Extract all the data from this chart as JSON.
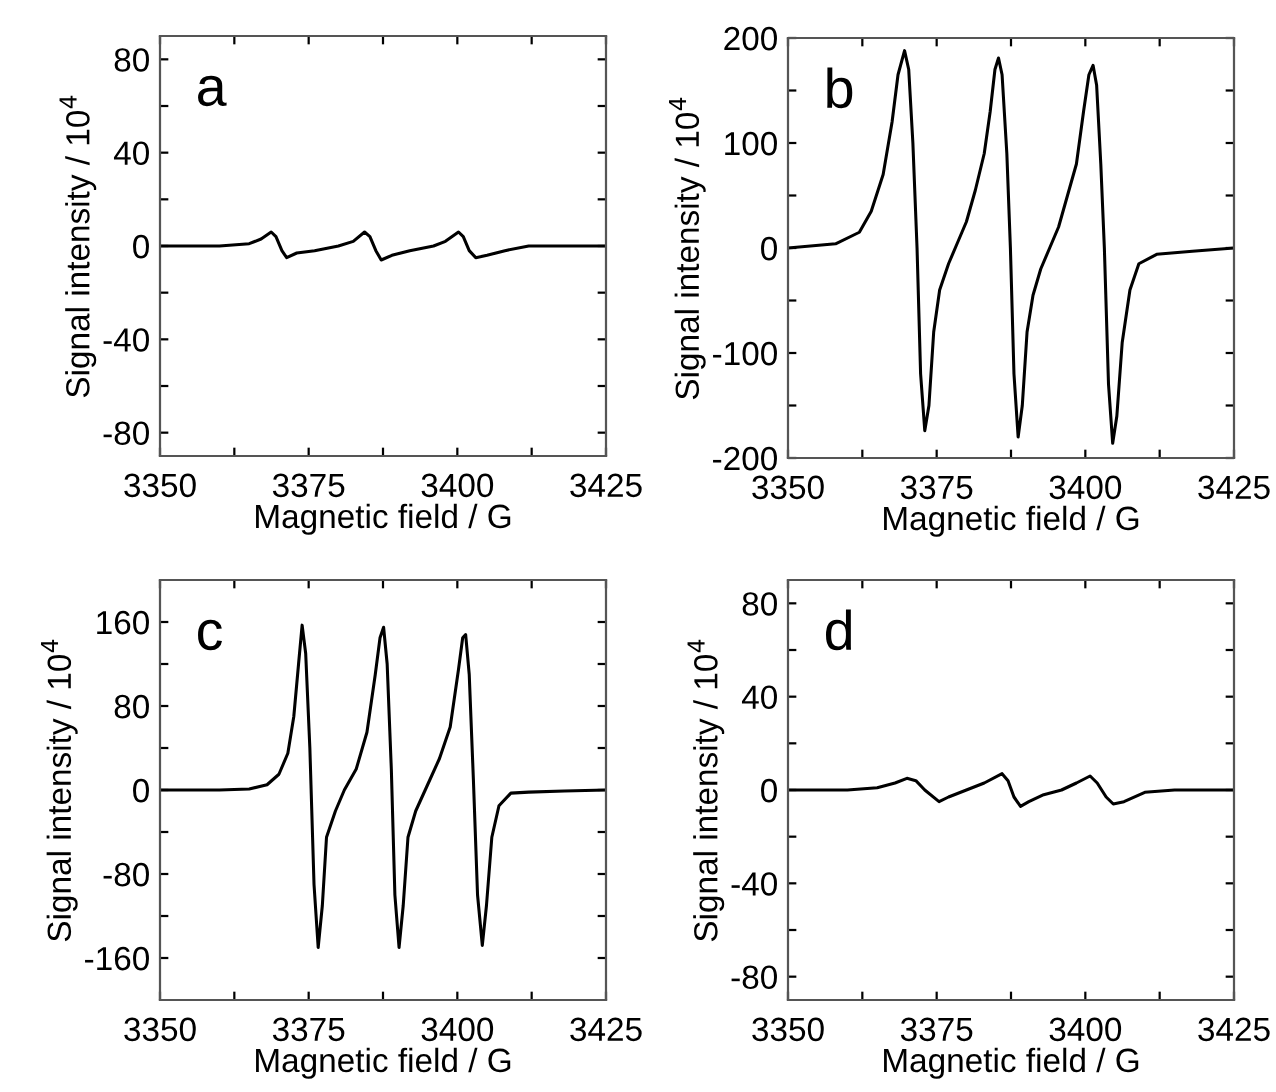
{
  "chart_data": [
    {
      "type": "line",
      "xlabel": "Magnetic field / G",
      "ylabel": "Signal intensity / 10$^{4}$",
      "annotations": [
        "a"
      ],
      "xlim": [
        3350,
        3425
      ],
      "ylim": [
        -90,
        90
      ],
      "xticks": [
        3350,
        {
          "value": 3362.5,
          "label": null
        },
        3375,
        {
          "value": 3387.5,
          "label": null
        },
        3400,
        {
          "value": 3412.5,
          "label": null
        },
        3425
      ],
      "yticks": [
        -80,
        {
          "value": -60,
          "label": null
        },
        -40,
        {
          "value": -20,
          "label": null
        },
        0,
        {
          "value": 20,
          "label": null
        },
        40,
        {
          "value": 60,
          "label": null
        },
        80
      ],
      "series": [
        {
          "color": "#000000",
          "x": [
            3350,
            3360,
            3365,
            3367,
            3368.7,
            3369.5,
            3370.5,
            3371.3,
            3373,
            3376,
            3380,
            3382.5,
            3384.4,
            3385.3,
            3386.3,
            3387.2,
            3389,
            3392,
            3396,
            3398,
            3400.2,
            3401,
            3402,
            3403.1,
            3405,
            3408,
            3412,
            3425
          ],
          "values": [
            0,
            0,
            1,
            3,
            6,
            4,
            -2,
            -5,
            -3,
            -2,
            0,
            2,
            6,
            4,
            -2,
            -6,
            -4,
            -2,
            0,
            2,
            6,
            4,
            -2,
            -5,
            -4,
            -2,
            0,
            0
          ]
        }
      ]
    },
    {
      "type": "line",
      "xlabel": "Magnetic field / G",
      "ylabel": "Signal intensity / 10$^{4}$",
      "annotations": [
        "b"
      ],
      "xlim": [
        3350,
        3425
      ],
      "ylim": [
        -200,
        200
      ],
      "xticks": [
        3350,
        {
          "value": 3362.5,
          "label": null
        },
        3375,
        {
          "value": 3387.5,
          "label": null
        },
        3400,
        {
          "value": 3412.5,
          "label": null
        },
        3425
      ],
      "yticks": [
        -200,
        {
          "value": -150,
          "label": null
        },
        -100,
        {
          "value": -50,
          "label": null
        },
        0,
        {
          "value": 50,
          "label": null
        },
        100,
        {
          "value": 150,
          "label": null
        },
        200
      ],
      "series": [
        {
          "color": "#000000",
          "x": [
            3350,
            3358,
            3362,
            3364,
            3366,
            3367.5,
            3368.5,
            3369.6,
            3370.3,
            3371,
            3371.7,
            3372.3,
            3373,
            3373.7,
            3374.5,
            3375.5,
            3377,
            3378.5,
            3380,
            3381.5,
            3383,
            3384,
            3384.8,
            3385.4,
            3386,
            3386.8,
            3387.4,
            3388,
            3388.7,
            3389.4,
            3390.2,
            3391.2,
            3392.5,
            3394,
            3395.5,
            3397,
            3398.5,
            3399.7,
            3400.6,
            3401.3,
            3401.9,
            3402.6,
            3403.2,
            3403.9,
            3404.6,
            3405.3,
            3406.2,
            3407.5,
            3409,
            3412,
            3418,
            3425
          ],
          "values": [
            0,
            4,
            15,
            35,
            70,
            120,
            165,
            188,
            170,
            100,
            0,
            -120,
            -174,
            -150,
            -80,
            -40,
            -15,
            5,
            25,
            55,
            90,
            130,
            170,
            181,
            165,
            90,
            0,
            -120,
            -180,
            -150,
            -80,
            -45,
            -20,
            0,
            20,
            50,
            80,
            130,
            165,
            174,
            155,
            80,
            0,
            -130,
            -186,
            -160,
            -90,
            -40,
            -15,
            -6,
            -3,
            0
          ]
        }
      ]
    },
    {
      "type": "line",
      "xlabel": "Magnetic field / G",
      "ylabel": "Signal intensity / 10$^{4}$",
      "annotations": [
        "c"
      ],
      "xlim": [
        3350,
        3425
      ],
      "ylim": [
        -200,
        200
      ],
      "xticks": [
        3350,
        {
          "value": 3362.5,
          "label": null
        },
        3375,
        {
          "value": 3387.5,
          "label": null
        },
        3400,
        {
          "value": 3412.5,
          "label": null
        },
        3425
      ],
      "yticks": [
        -160,
        {
          "value": -120,
          "label": null
        },
        -80,
        {
          "value": -40,
          "label": null
        },
        0,
        {
          "value": 40,
          "label": null
        },
        80,
        {
          "value": 120,
          "label": null
        },
        160
      ],
      "series": [
        {
          "color": "#000000",
          "x": [
            3350,
            3360,
            3365,
            3368,
            3370,
            3371.5,
            3372.5,
            3373.3,
            3373.9,
            3374.5,
            3375.2,
            3375.9,
            3376.6,
            3377.3,
            3378,
            3379.5,
            3381,
            3383,
            3384.8,
            3386.2,
            3387,
            3387.6,
            3388.2,
            3388.9,
            3389.5,
            3390.2,
            3390.9,
            3391.7,
            3393,
            3395,
            3397,
            3398.8,
            3400.2,
            3400.9,
            3401.4,
            3402,
            3402.7,
            3403.4,
            3404.2,
            3404.9,
            3405.8,
            3407,
            3409,
            3412,
            3418,
            3425
          ],
          "values": [
            0,
            0,
            1,
            5,
            15,
            35,
            70,
            120,
            157,
            130,
            40,
            -90,
            -150,
            -110,
            -45,
            -20,
            0,
            20,
            55,
            110,
            145,
            155,
            120,
            20,
            -100,
            -150,
            -110,
            -45,
            -20,
            5,
            30,
            60,
            115,
            145,
            148,
            110,
            10,
            -100,
            -148,
            -110,
            -45,
            -15,
            -3,
            -2,
            -1,
            0
          ]
        }
      ]
    },
    {
      "type": "line",
      "xlabel": "Magnetic field / G",
      "ylabel": "Signal intensity / 10$^{4}$",
      "annotations": [
        "d"
      ],
      "xlim": [
        3350,
        3425
      ],
      "ylim": [
        -90,
        90
      ],
      "xticks": [
        3350,
        {
          "value": 3362.5,
          "label": null
        },
        3375,
        {
          "value": 3387.5,
          "label": null
        },
        3400,
        {
          "value": 3412.5,
          "label": null
        },
        3425
      ],
      "yticks": [
        -80,
        {
          "value": -60,
          "label": null
        },
        -40,
        {
          "value": -20,
          "label": null
        },
        0,
        {
          "value": 20,
          "label": null
        },
        40,
        {
          "value": 60,
          "label": null
        },
        80
      ],
      "series": [
        {
          "color": "#000000",
          "x": [
            3350,
            3360,
            3365,
            3368,
            3370,
            3371.5,
            3373,
            3375.4,
            3377,
            3380,
            3383,
            3386,
            3387,
            3388,
            3389.1,
            3390.5,
            3393,
            3396,
            3398.5,
            3400.8,
            3402,
            3403.5,
            3404.7,
            3406.5,
            3410,
            3415,
            3425
          ],
          "values": [
            0,
            0,
            1,
            3,
            5,
            4,
            0,
            -5,
            -3,
            0,
            3,
            7,
            4,
            -3,
            -7,
            -5,
            -2,
            0,
            3,
            6,
            3,
            -3,
            -6,
            -5,
            -1,
            0,
            0
          ]
        }
      ]
    }
  ]
}
